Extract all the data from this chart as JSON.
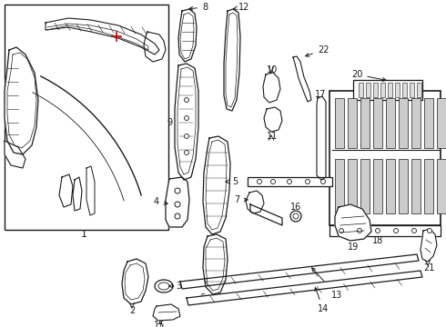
{
  "bg_color": "#ffffff",
  "line_color": "#1a1a1a",
  "red_color": "#cc0000",
  "fig_width": 4.9,
  "fig_height": 3.6,
  "dpi": 100
}
